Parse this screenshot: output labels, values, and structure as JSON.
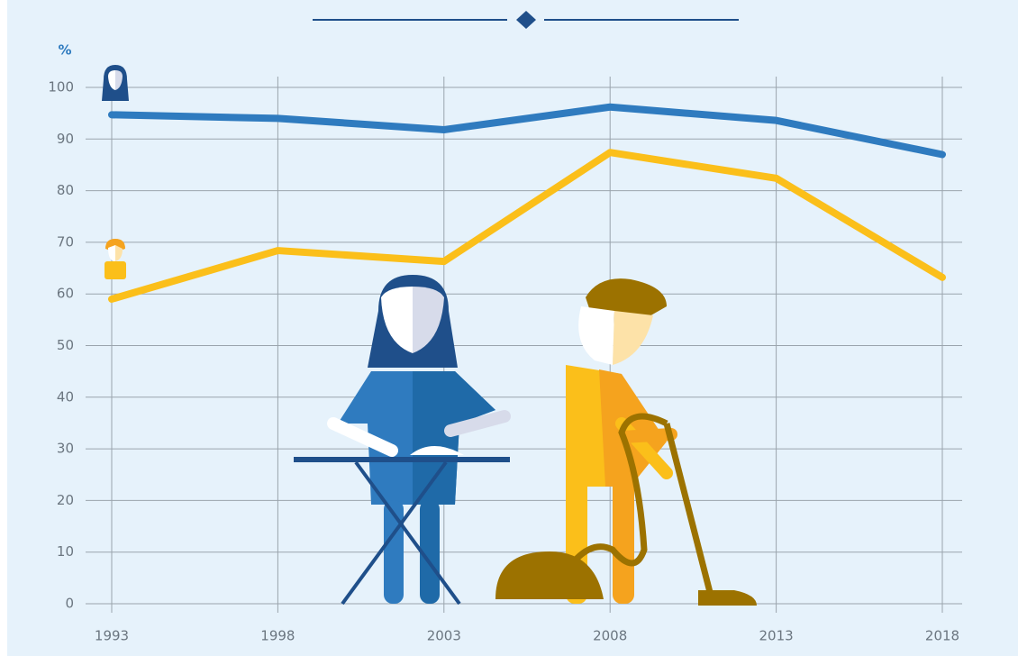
{
  "chart_data": {
    "type": "line",
    "y_label": "%",
    "x": [
      1993,
      1998,
      2003,
      2008,
      2013,
      2018
    ],
    "xlim": [
      1993,
      2018
    ],
    "xticks": [
      1993,
      1998,
      2003,
      2008,
      2013,
      2018
    ],
    "ylim": [
      0,
      100
    ],
    "yticks": [
      0,
      10,
      20,
      30,
      40,
      50,
      60,
      70,
      80,
      90,
      100
    ],
    "grid": true,
    "series": [
      {
        "color": "#2f7bbf",
        "values": [
          94.7,
          94,
          91.8,
          96.2,
          93.6,
          87
        ]
      },
      {
        "color": "#fbbf1a",
        "values": [
          59,
          68.4,
          66.3,
          87.4,
          82.4,
          63.2
        ]
      }
    ]
  }
}
